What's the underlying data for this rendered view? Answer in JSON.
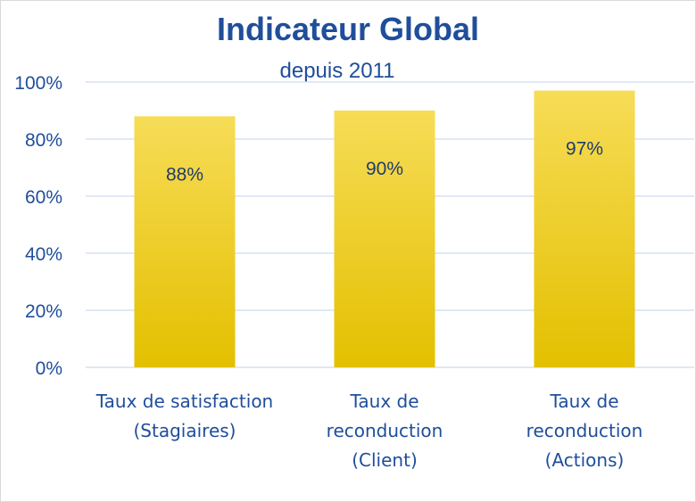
{
  "chart_data": {
    "type": "bar",
    "title": "Indicateur Global",
    "subtitle": "depuis 2011",
    "categories": [
      [
        "Taux de satisfaction",
        "(Stagiaires)"
      ],
      [
        "Taux de",
        "reconduction",
        "(Client)"
      ],
      [
        "Taux de",
        "reconduction",
        "(Actions)"
      ]
    ],
    "values": [
      88,
      90,
      97
    ],
    "data_labels": [
      "88%",
      "90%",
      "97%"
    ],
    "ylim": [
      0,
      100
    ],
    "yticks": [
      0,
      20,
      40,
      60,
      80,
      100
    ],
    "ytick_labels": [
      "0%",
      "20%",
      "40%",
      "60%",
      "80%",
      "100%"
    ],
    "grid": true,
    "colors": {
      "bar_top": "#f7dc57",
      "bar_bottom": "#e3c000",
      "text": "#1f4e9a",
      "grid": "#d6e2f0"
    }
  }
}
